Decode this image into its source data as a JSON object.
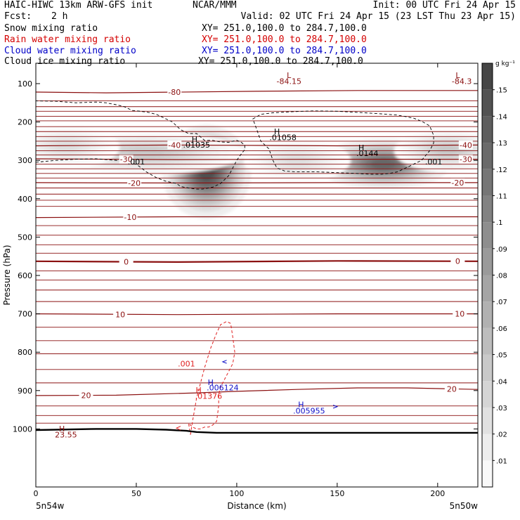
{
  "header": {
    "title": "HAIC-HIWC 13km ARW-GFS init",
    "org": "NCAR/MMM",
    "init": "Init: 00 UTC Fri 24 Apr 15",
    "fcst_label": "Fcst:",
    "fcst_value": "2 h",
    "valid": "Valid: 02 UTC Fri 24 Apr 15 (23 LST Thu 23 Apr 15)"
  },
  "fields": [
    {
      "name": "Snow mixing ratio",
      "xy": "XY= 251.0,100.0 to 284.7,100.0",
      "color": "#000000"
    },
    {
      "name": "Rain water mixing ratio",
      "xy": "XY= 251.0,100.0 to 284.7,100.0",
      "color": "#d40000"
    },
    {
      "name": "Cloud water mixing ratio",
      "xy": "XY= 251.0,100.0 to 284.7,100.0",
      "color": "#0000c8"
    },
    {
      "name": "Cloud ice mixing ratio",
      "xy": "XY= 251.0,100.0 to 284.7,100.0",
      "color": "#000000"
    }
  ],
  "colors": {
    "temperature": "#8b1010",
    "rain": "#e02020",
    "cloud_water": "#1010c8",
    "snow": "#000000",
    "terrain": "#000000"
  },
  "chart_data": {
    "type": "heatmap",
    "xlabel": "Distance (km)",
    "ylabel": "Pressure (hPa)",
    "xlim": [
      0,
      220
    ],
    "ylim": [
      50,
      1030
    ],
    "x_ticks": [
      0,
      50,
      100,
      150,
      200
    ],
    "x_end_labels": {
      "left": "5n54w",
      "right": "5n50w"
    },
    "y_ticks": [
      100,
      200,
      300,
      400,
      500,
      600,
      700,
      800,
      900,
      1000
    ],
    "colorbar": {
      "unit": "g kg⁻¹",
      "ticks": [
        ".01",
        ".02",
        ".03",
        ".04",
        ".05",
        ".06",
        ".07",
        ".08",
        ".09",
        ".1",
        ".11",
        ".12",
        ".13",
        ".14",
        ".15"
      ],
      "min": 0,
      "max": 0.16
    },
    "temperature_isotherms": [
      {
        "label": "-80",
        "x": [
          0,
          35,
          110,
          160,
          210,
          220
        ],
        "p": [
          122,
          124,
          120,
          118,
          118,
          118
        ],
        "label_x": 69
      },
      {
        "label": "-40",
        "x": [
          0,
          70,
          150,
          220
        ],
        "p": [
          262,
          260,
          262,
          260
        ],
        "label_x": 69,
        "label_right_x": 214
      },
      {
        "label": "-30",
        "x": [
          0,
          70,
          150,
          220
        ],
        "p": [
          296,
          298,
          297,
          297
        ],
        "label_x": 45,
        "label_right_x": 214
      },
      {
        "label": "-20",
        "x": [
          0,
          70,
          150,
          220
        ],
        "p": [
          358,
          359,
          358,
          358
        ],
        "label_x": 49,
        "label_right_x": 210
      },
      {
        "label": "-10",
        "x": [
          0,
          70,
          150,
          220
        ],
        "p": [
          449,
          447,
          447,
          447
        ],
        "label_x": 47
      },
      {
        "label": "0",
        "x": [
          0,
          70,
          150,
          220
        ],
        "p": [
          563,
          565,
          562,
          563
        ],
        "label_x": 45,
        "label_right_x": 210
      },
      {
        "label": "10",
        "x": [
          0,
          70,
          150,
          220
        ],
        "p": [
          700,
          702,
          700,
          700
        ],
        "label_x": 42,
        "label_right_x": 211
      },
      {
        "label": "20",
        "x": [
          0,
          40,
          80,
          100,
          130,
          160,
          185,
          220
        ],
        "p": [
          913,
          912,
          906,
          902,
          897,
          893,
          893,
          897
        ],
        "label_x": 25,
        "label_right_x": 207
      }
    ],
    "extra_isotherm_levels": [
      145,
      160,
      172,
      185,
      197,
      212,
      225,
      238,
      250,
      275,
      286,
      310,
      322,
      334,
      346,
      372,
      388,
      404,
      420,
      470,
      495,
      520,
      542,
      588,
      612,
      638,
      668,
      735,
      770,
      804,
      845,
      880,
      940,
      965,
      985
    ],
    "snow_max_centers": [
      {
        "x": 85,
        "p": 330,
        "value": 0.16,
        "sx": 10,
        "sp": 55
      },
      {
        "x": 173,
        "p": 310,
        "value": 0.14,
        "sx": 15,
        "sp": 30
      },
      {
        "x": 205,
        "p": 275,
        "value": 0.05,
        "sx": 12,
        "sp": 25
      },
      {
        "x": 55,
        "p": 282,
        "value": 0.05,
        "sx": 22,
        "sp": 25
      },
      {
        "x": 15,
        "p": 265,
        "value": 0.03,
        "sx": 12,
        "sp": 25
      },
      {
        "x": 130,
        "p": 300,
        "value": 0.03,
        "sx": 12,
        "sp": 25
      }
    ],
    "cloud_ice_contour": {
      "label": ".001",
      "x": [
        0,
        10,
        20,
        30,
        40,
        45,
        50,
        55,
        60,
        65,
        70,
        72,
        76,
        80,
        83,
        88,
        92,
        96,
        98,
        100,
        102,
        104,
        104,
        102,
        100,
        98,
        96,
        92,
        88,
        84,
        80,
        76,
        72,
        68,
        64,
        60,
        56,
        52,
        48,
        44,
        40,
        35,
        30,
        20,
        10,
        0
      ],
      "p": [
        305,
        300,
        297,
        296,
        300,
        305,
        310,
        330,
        345,
        355,
        360,
        368,
        372,
        375,
        375,
        370,
        360,
        340,
        320,
        300,
        285,
        272,
        260,
        252,
        248,
        250,
        253,
        252,
        248,
        248,
        230,
        230,
        220,
        200,
        190,
        180,
        175,
        172,
        170,
        160,
        155,
        150,
        148,
        150,
        146,
        145
      ]
    },
    "cloud_ice_contour_2": {
      "label": ".001",
      "x": [
        108,
        110,
        112,
        118,
        128,
        138,
        150,
        160,
        170,
        180,
        188,
        192,
        196,
        198,
        198,
        196,
        192,
        188,
        184,
        180,
        178,
        176,
        172,
        166,
        160,
        150,
        140,
        130,
        124,
        120,
        118,
        116,
        112,
        110,
        108
      ],
      "p": [
        192,
        186,
        180,
        176,
        173,
        171,
        172,
        175,
        178,
        182,
        190,
        198,
        210,
        235,
        255,
        275,
        300,
        310,
        320,
        330,
        332,
        334,
        336,
        336,
        334,
        332,
        330,
        330,
        328,
        320,
        300,
        270,
        250,
        220,
        192
      ]
    },
    "rain_contour": {
      "label": ".001",
      "x": [
        77,
        78,
        79,
        80,
        82,
        84,
        87,
        90,
        92,
        95,
        97,
        98,
        99,
        98,
        96,
        94,
        92,
        91,
        91,
        90,
        88,
        86,
        84,
        82,
        80,
        78,
        77,
        76,
        77
      ],
      "p": [
        1015,
        980,
        950,
        920,
        880,
        840,
        790,
        750,
        728,
        720,
        725,
        760,
        800,
        830,
        850,
        870,
        890,
        910,
        940,
        980,
        990,
        995,
        995,
        1000,
        1000,
        995,
        990,
        985,
        1015
      ]
    },
    "terrain_line": {
      "x": [
        0,
        30,
        50,
        65,
        75,
        80,
        90,
        100,
        130,
        160,
        190,
        220
      ],
      "p": [
        1003,
        1000,
        1000,
        1002,
        1005,
        1008,
        1010,
        1010,
        1010,
        1010,
        1010,
        1010
      ]
    },
    "cloud_water_flag": {
      "x": [
        95,
        93,
        95
      ],
      "p": [
        821,
        825,
        829
      ]
    },
    "cloud_water_flag_2": {
      "x": [
        148,
        150,
        148
      ],
      "p": [
        938,
        942,
        946
      ]
    },
    "rain_flag": {
      "x": [
        72,
        70,
        72
      ],
      "p": [
        993,
        998,
        1003
      ]
    },
    "labels": [
      {
        "text": "L",
        "x": 126,
        "p": 85,
        "color": "temperature",
        "kind": "letter"
      },
      {
        "text": "-84.15",
        "x": 126,
        "p": 101,
        "color": "temperature",
        "kind": "value"
      },
      {
        "text": "L",
        "x": 210,
        "p": 85,
        "color": "temperature",
        "kind": "letter"
      },
      {
        "text": "-84.3",
        "x": 212,
        "p": 101,
        "color": "temperature",
        "kind": "value"
      },
      {
        "text": "H",
        "x": 79,
        "p": 252,
        "color": "snow",
        "kind": "letter"
      },
      {
        "text": ".01035",
        "x": 80,
        "p": 267,
        "color": "snow",
        "kind": "value"
      },
      {
        "text": "H",
        "x": 120,
        "p": 232,
        "color": "snow",
        "kind": "letter"
      },
      {
        "text": ".01058",
        "x": 123,
        "p": 247,
        "color": "snow",
        "kind": "value"
      },
      {
        "text": "H",
        "x": 162,
        "p": 274,
        "color": "snow",
        "kind": "letter"
      },
      {
        "text": ".0144",
        "x": 165,
        "p": 289,
        "color": "snow",
        "kind": "value"
      },
      {
        "text": ".001",
        "x": 50,
        "p": 311,
        "color": "snow",
        "kind": "value"
      },
      {
        "text": ".001",
        "x": 198,
        "p": 311,
        "color": "snow",
        "kind": "value"
      },
      {
        "text": ".001",
        "x": 75,
        "p": 837,
        "color": "rain",
        "kind": "value"
      },
      {
        "text": "H",
        "x": 87,
        "p": 886,
        "color": "cloud_water",
        "kind": "letter"
      },
      {
        "text": ".006124",
        "x": 93,
        "p": 899,
        "color": "cloud_water",
        "kind": "value"
      },
      {
        "text": "H",
        "x": 81,
        "p": 906,
        "color": "rain",
        "kind": "letter"
      },
      {
        "text": ".01376",
        "x": 86,
        "p": 921,
        "color": "rain",
        "kind": "value"
      },
      {
        "text": "H",
        "x": 132,
        "p": 943,
        "color": "cloud_water",
        "kind": "letter"
      },
      {
        "text": ".005955",
        "x": 136,
        "p": 960,
        "color": "cloud_water",
        "kind": "value"
      },
      {
        "text": "H",
        "x": 13,
        "p": 1007,
        "color": "temperature",
        "kind": "letter"
      },
      {
        "text": "23.55",
        "x": 15,
        "p": 1022,
        "color": "temperature",
        "kind": "value"
      }
    ]
  }
}
